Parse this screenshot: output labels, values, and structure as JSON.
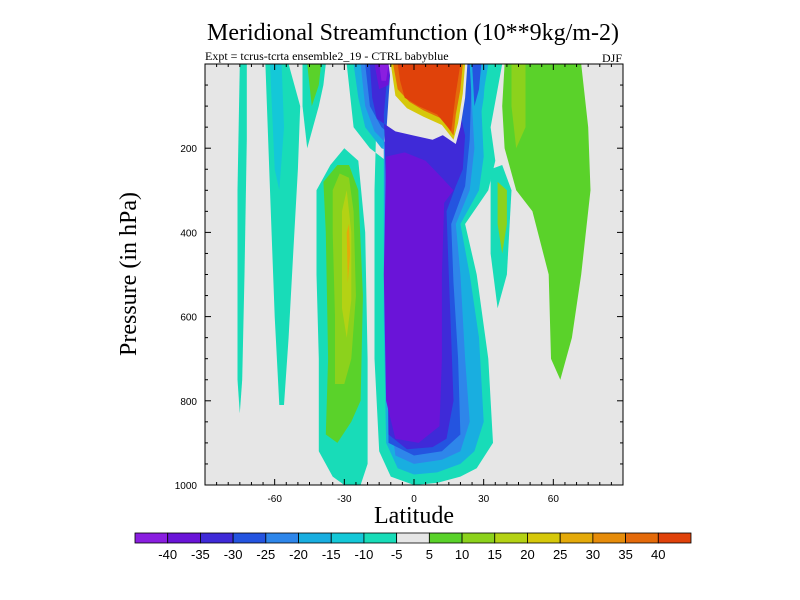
{
  "chart_data": {
    "type": "heatmap",
    "title": "Meridional Streamfunction (10**9kg/m-2)",
    "subtitle": "Expt = tcrus-tcrta  ensemble2_19 - CTRL babyblue",
    "season": "DJF",
    "xlabel": "Latitude",
    "ylabel": "Pressure (in hPa)",
    "xlim": [
      -90,
      90
    ],
    "ylim": [
      1000,
      0
    ],
    "x_ticks": [
      -60,
      -30,
      0,
      30,
      60
    ],
    "x_tick_labels": [
      "-60",
      "-30",
      "0",
      "30",
      "60"
    ],
    "y_ticks": [
      200,
      400,
      600,
      800,
      1000
    ],
    "y_tick_labels": [
      "200",
      "400",
      "600",
      "800",
      "1000"
    ],
    "background_color": "#e6e6e6",
    "colorbar": {
      "colors": [
        "#8a1ee0",
        "#6a14d8",
        "#3f2ad8",
        "#2454e0",
        "#2e86ea",
        "#19aee0",
        "#14c8d8",
        "#18dcb8",
        "#e6e6e6",
        "#5ad22a",
        "#8cd21c",
        "#b4d214",
        "#d6c80a",
        "#e4aa0a",
        "#e68c0a",
        "#e46a0a",
        "#e0420a"
      ],
      "labels": [
        "-40",
        "-35",
        "-30",
        "-25",
        "-20",
        "-15",
        "-10",
        "-5",
        "5",
        "10",
        "15",
        "20",
        "25",
        "30",
        "35",
        "40"
      ]
    },
    "regions": [
      {
        "level": 7,
        "pts": [
          [
            -75,
            0
          ],
          [
            -72,
            0
          ],
          [
            -72,
            180
          ],
          [
            -73,
            500
          ],
          [
            -74,
            750
          ],
          [
            -75,
            830
          ],
          [
            -76,
            750
          ],
          [
            -76,
            300
          ]
        ]
      },
      {
        "level": 7,
        "pts": [
          [
            -64,
            0
          ],
          [
            -54,
            0
          ],
          [
            -49,
            100
          ],
          [
            -50,
            250
          ],
          [
            -52,
            450
          ],
          [
            -54,
            650
          ],
          [
            -56,
            810
          ],
          [
            -58,
            810
          ],
          [
            -60,
            600
          ],
          [
            -62,
            300
          ]
        ]
      },
      {
        "level": 6,
        "pts": [
          [
            -62,
            0
          ],
          [
            -57,
            0
          ],
          [
            -56,
            150
          ],
          [
            -58,
            300
          ],
          [
            -60,
            250
          ]
        ]
      },
      {
        "level": 7,
        "pts": [
          [
            -48,
            0
          ],
          [
            -38,
            0
          ],
          [
            -39,
            50
          ],
          [
            -41,
            100
          ],
          [
            -46,
            200
          ],
          [
            -48,
            100
          ]
        ]
      },
      {
        "level": 9,
        "pts": [
          [
            -46,
            0
          ],
          [
            -40,
            0
          ],
          [
            -41,
            50
          ],
          [
            -44,
            100
          ],
          [
            -45,
            50
          ]
        ]
      },
      {
        "level": 7,
        "pts": [
          [
            -42,
            300
          ],
          [
            -36,
            240
          ],
          [
            -30,
            200
          ],
          [
            -24,
            230
          ],
          [
            -21,
            400
          ],
          [
            -20,
            700
          ],
          [
            -20,
            950
          ],
          [
            -23,
            1000
          ],
          [
            -30,
            1000
          ],
          [
            -35,
            980
          ],
          [
            -41,
            920
          ],
          [
            -41,
            700
          ],
          [
            -42,
            500
          ]
        ]
      },
      {
        "level": 9,
        "pts": [
          [
            -39,
            280
          ],
          [
            -33,
            240
          ],
          [
            -28,
            240
          ],
          [
            -24,
            300
          ],
          [
            -22,
            550
          ],
          [
            -23,
            800
          ],
          [
            -27,
            850
          ],
          [
            -33,
            900
          ],
          [
            -38,
            880
          ],
          [
            -37,
            700
          ],
          [
            -38,
            400
          ]
        ]
      },
      {
        "level": 10,
        "pts": [
          [
            -35,
            300
          ],
          [
            -32,
            260
          ],
          [
            -28,
            270
          ],
          [
            -26,
            350
          ],
          [
            -25,
            550
          ],
          [
            -27,
            700
          ],
          [
            -30,
            760
          ],
          [
            -34,
            760
          ],
          [
            -34,
            600
          ],
          [
            -35,
            400
          ]
        ]
      },
      {
        "level": 11,
        "pts": [
          [
            -31,
            350
          ],
          [
            -29,
            300
          ],
          [
            -27,
            400
          ],
          [
            -27,
            560
          ],
          [
            -29,
            650
          ],
          [
            -31,
            580
          ]
        ]
      },
      {
        "level": 13,
        "pts": [
          [
            -29,
            400
          ],
          [
            -28,
            380
          ],
          [
            -27.5,
            450
          ],
          [
            -28.5,
            520
          ]
        ]
      },
      {
        "level": 7,
        "pts": [
          [
            -29,
            0
          ],
          [
            -14,
            0
          ],
          [
            -16,
            100
          ],
          [
            -17,
            300
          ],
          [
            -17,
            700
          ],
          [
            -15,
            920
          ],
          [
            -10,
            980
          ],
          [
            0,
            1000
          ],
          [
            10,
            995
          ],
          [
            20,
            980
          ],
          [
            27,
            960
          ],
          [
            34,
            900
          ],
          [
            32,
            700
          ],
          [
            27,
            500
          ],
          [
            22,
            380
          ],
          [
            32,
            300
          ],
          [
            35,
            230
          ],
          [
            33,
            150
          ],
          [
            38,
            0
          ],
          [
            29,
            0
          ],
          [
            25,
            100
          ],
          [
            22,
            200
          ],
          [
            15,
            260
          ],
          [
            8,
            250
          ],
          [
            -2,
            240
          ],
          [
            -12,
            230
          ],
          [
            -19,
            200
          ],
          [
            -26,
            150
          ]
        ]
      },
      {
        "level": 5,
        "pts": [
          [
            -26,
            0
          ],
          [
            -11,
            0
          ],
          [
            -12,
            100
          ],
          [
            -13,
            200
          ],
          [
            -13,
            600
          ],
          [
            -12,
            900
          ],
          [
            -7,
            960
          ],
          [
            0,
            975
          ],
          [
            10,
            970
          ],
          [
            20,
            950
          ],
          [
            26,
            920
          ],
          [
            30,
            850
          ],
          [
            28,
            650
          ],
          [
            24,
            500
          ],
          [
            20,
            380
          ],
          [
            28,
            300
          ],
          [
            30,
            220
          ],
          [
            29,
            100
          ],
          [
            32,
            0
          ],
          [
            26,
            0
          ],
          [
            23,
            120
          ],
          [
            20,
            200
          ],
          [
            14,
            240
          ],
          [
            5,
            230
          ],
          [
            -5,
            220
          ],
          [
            -14,
            200
          ],
          [
            -21,
            150
          ],
          [
            -24,
            80
          ]
        ]
      },
      {
        "level": 4,
        "pts": [
          [
            -23,
            0
          ],
          [
            -12,
            0
          ],
          [
            -13,
            180
          ],
          [
            -12,
            750
          ],
          [
            -8,
            930
          ],
          [
            0,
            950
          ],
          [
            12,
            940
          ],
          [
            20,
            920
          ],
          [
            24,
            850
          ],
          [
            22,
            700
          ],
          [
            20,
            500
          ],
          [
            18,
            380
          ],
          [
            24,
            300
          ],
          [
            26,
            200
          ],
          [
            27,
            100
          ],
          [
            29,
            0
          ],
          [
            24,
            0
          ],
          [
            21,
            120
          ],
          [
            18,
            200
          ],
          [
            10,
            220
          ],
          [
            0,
            210
          ],
          [
            -10,
            200
          ],
          [
            -17,
            160
          ],
          [
            -21,
            100
          ]
        ]
      },
      {
        "level": 3,
        "pts": [
          [
            -21,
            0
          ],
          [
            -10,
            0
          ],
          [
            -12,
            170
          ],
          [
            -11,
            900
          ],
          [
            0,
            930
          ],
          [
            12,
            920
          ],
          [
            20,
            880
          ],
          [
            19,
            700
          ],
          [
            17,
            520
          ],
          [
            16,
            380
          ],
          [
            22,
            290
          ],
          [
            24,
            180
          ],
          [
            25,
            0
          ],
          [
            22,
            0
          ],
          [
            19,
            120
          ],
          [
            16,
            180
          ],
          [
            8,
            200
          ],
          [
            -5,
            190
          ],
          [
            -14,
            150
          ],
          [
            -19,
            100
          ]
        ]
      },
      {
        "level": 2,
        "pts": [
          [
            -19,
            0
          ],
          [
            -11,
            0
          ],
          [
            -13,
            120
          ],
          [
            -12,
            300
          ],
          [
            -11,
            880
          ],
          [
            -3,
            915
          ],
          [
            8,
            910
          ],
          [
            14,
            890
          ],
          [
            17,
            800
          ],
          [
            16,
            650
          ],
          [
            15,
            500
          ],
          [
            14,
            350
          ],
          [
            18,
            290
          ],
          [
            21,
            250
          ],
          [
            22,
            170
          ],
          [
            20,
            120
          ],
          [
            16,
            160
          ],
          [
            8,
            180
          ],
          [
            0,
            170
          ],
          [
            -8,
            160
          ],
          [
            -16,
            130
          ],
          [
            -18,
            80
          ]
        ]
      },
      {
        "level": 1,
        "pts": [
          [
            -12,
            220
          ],
          [
            -4,
            210
          ],
          [
            5,
            230
          ],
          [
            12,
            270
          ],
          [
            17,
            300
          ],
          [
            13,
            330
          ],
          [
            12,
            500
          ],
          [
            12,
            700
          ],
          [
            11,
            860
          ],
          [
            2,
            900
          ],
          [
            -8,
            890
          ],
          [
            -12,
            800
          ],
          [
            -13,
            500
          ]
        ]
      },
      {
        "level": 1,
        "pts": [
          [
            -17,
            0
          ],
          [
            -10,
            0
          ],
          [
            -11,
            50
          ],
          [
            -15,
            60
          ]
        ]
      },
      {
        "level": 0,
        "pts": [
          [
            -15,
            0
          ],
          [
            -11,
            0
          ],
          [
            -12,
            40
          ],
          [
            -14,
            40
          ]
        ]
      },
      {
        "level": 5,
        "pts": [
          [
            24,
            0
          ],
          [
            31,
            0
          ],
          [
            30,
            80
          ],
          [
            28,
            150
          ],
          [
            26,
            200
          ],
          [
            25,
            100
          ]
        ]
      },
      {
        "level": 3,
        "pts": [
          [
            25,
            0
          ],
          [
            29,
            0
          ],
          [
            28,
            60
          ],
          [
            26,
            100
          ]
        ]
      },
      {
        "level": 8,
        "pts": [
          [
            -11,
            0
          ],
          [
            23,
            0
          ],
          [
            22,
            80
          ],
          [
            20,
            150
          ],
          [
            18,
            190
          ],
          [
            10,
            160
          ],
          [
            3,
            140
          ],
          [
            -4,
            120
          ],
          [
            -9,
            80
          ]
        ]
      },
      {
        "level": 12,
        "pts": [
          [
            -10,
            0
          ],
          [
            22,
            0
          ],
          [
            21,
            70
          ],
          [
            19,
            140
          ],
          [
            17,
            180
          ],
          [
            12,
            145
          ],
          [
            4,
            125
          ],
          [
            -3,
            105
          ],
          [
            -8,
            75
          ]
        ]
      },
      {
        "level": 15,
        "pts": [
          [
            -9,
            0
          ],
          [
            21,
            0
          ],
          [
            20,
            60
          ],
          [
            18,
            120
          ],
          [
            17,
            170
          ],
          [
            12,
            130
          ],
          [
            4,
            110
          ],
          [
            -2,
            90
          ],
          [
            -7,
            60
          ]
        ]
      },
      {
        "level": 16,
        "pts": [
          [
            -7,
            0
          ],
          [
            20,
            0
          ],
          [
            18,
            70
          ],
          [
            16,
            160
          ],
          [
            10,
            120
          ],
          [
            2,
            100
          ],
          [
            -4,
            80
          ],
          [
            -6,
            40
          ]
        ]
      },
      {
        "level": 9,
        "pts": [
          [
            39,
            0
          ],
          [
            72,
            0
          ],
          [
            75,
            150
          ],
          [
            76,
            300
          ],
          [
            72,
            500
          ],
          [
            68,
            650
          ],
          [
            63,
            750
          ],
          [
            59,
            700
          ],
          [
            58,
            500
          ],
          [
            51,
            350
          ],
          [
            44,
            300
          ],
          [
            39,
            200
          ],
          [
            38,
            100
          ]
        ]
      },
      {
        "level": 10,
        "pts": [
          [
            42,
            0
          ],
          [
            48,
            0
          ],
          [
            48,
            150
          ],
          [
            44,
            200
          ],
          [
            42,
            100
          ]
        ]
      },
      {
        "level": 7,
        "pts": [
          [
            33,
            250
          ],
          [
            38,
            240
          ],
          [
            42,
            300
          ],
          [
            40,
            500
          ],
          [
            36,
            580
          ],
          [
            33,
            450
          ]
        ]
      },
      {
        "level": 10,
        "pts": [
          [
            36,
            280
          ],
          [
            40,
            300
          ],
          [
            40,
            380
          ],
          [
            38,
            450
          ],
          [
            36,
            380
          ]
        ]
      }
    ]
  }
}
